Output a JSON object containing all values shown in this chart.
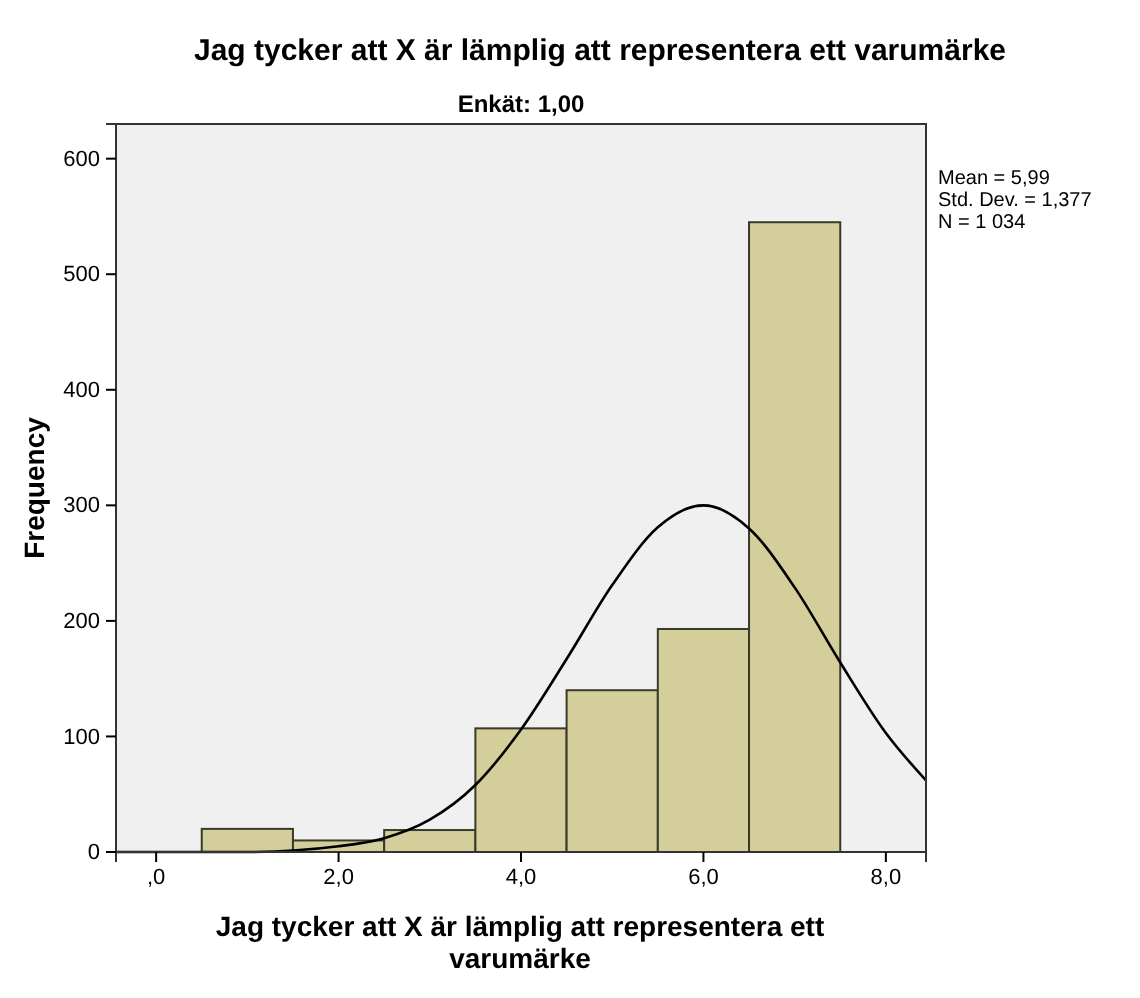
{
  "chart_data": {
    "type": "histogram",
    "title": "Jag tycker att X är lämplig att representera ett varumärke",
    "subtitle": "Enkät: 1,00",
    "xlabel": "Jag tycker att X är lämplig att representera ett varumärke",
    "ylabel": "Frequency",
    "bins": [
      0.5,
      1.5,
      2.5,
      3.5,
      4.5,
      5.5,
      6.5,
      7.5
    ],
    "values": [
      20,
      10,
      19,
      107,
      140,
      193,
      545
    ],
    "color": "#d4cf9a",
    "series": [
      {
        "type": "line",
        "color": "#000000",
        "x": [
          -0.44,
          0,
          1,
          2,
          2.5,
          3,
          3.5,
          4,
          4.5,
          5,
          5.5,
          6,
          6.5,
          7,
          7.5,
          8,
          8.44
        ],
        "values": [
          0,
          0,
          0,
          5,
          12,
          28,
          58,
          106,
          167,
          231,
          281,
          300,
          280,
          229,
          164,
          103,
          62
        ]
      }
    ],
    "xlim": [
      -0.44,
      8.44
    ],
    "ylim": [
      0,
      630
    ],
    "xticks": [
      {
        "value": 0,
        "label": ",0"
      },
      {
        "value": 2,
        "label": "2,0"
      },
      {
        "value": 4,
        "label": "4,0"
      },
      {
        "value": 6,
        "label": "6,0"
      },
      {
        "value": 8,
        "label": "8,0"
      }
    ],
    "yticks": [
      0,
      100,
      200,
      300,
      400,
      500,
      600
    ],
    "grid": false,
    "annotations": [
      "Mean = 5,99",
      "Std. Dev. = 1,377",
      "N = 1 034"
    ]
  }
}
